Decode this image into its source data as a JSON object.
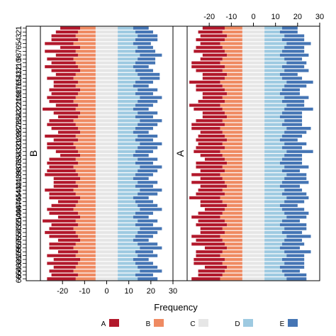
{
  "colors": {
    "A": "#b2182b",
    "B": "#ef8a62",
    "C": "#e6e6e6",
    "D": "#9ecae1",
    "E": "#4575b4",
    "frame": "#000000",
    "strip": "#ffffff"
  },
  "chart_data": {
    "type": "bar",
    "subtype": "diverging-stacked-horizontal",
    "xlabel": "Frequency",
    "xlim": [
      -30,
      30
    ],
    "xticks_bottom_panel": "left",
    "xticks_top_panel": "right",
    "xticks": [
      -20,
      -10,
      0,
      10,
      20,
      30
    ],
    "categories": [
      "1",
      "2",
      "3",
      "4",
      "5",
      "6",
      "7",
      "8",
      "9",
      "10",
      "11",
      "12",
      "13",
      "14",
      "15",
      "16",
      "17",
      "18",
      "19",
      "20",
      "21",
      "22",
      "23",
      "24",
      "25",
      "26",
      "27",
      "28",
      "29",
      "30",
      "31",
      "32",
      "33",
      "34",
      "35",
      "36",
      "37",
      "38",
      "39",
      "40",
      "41",
      "42",
      "43",
      "44",
      "45",
      "46",
      "47",
      "48",
      "49",
      "50",
      "51",
      "52",
      "53",
      "54",
      "55",
      "56",
      "57",
      "58",
      "59",
      "60",
      "61",
      "62",
      "63",
      "64",
      "65",
      "66"
    ],
    "legend": {
      "position": "bottom",
      "items": [
        "A",
        "B",
        "C",
        "D",
        "E"
      ]
    },
    "panels": [
      {
        "strip_label": "B",
        "series": {
          "A": [
            9,
            10,
            11,
            12,
            13,
            9,
            14,
            10,
            12,
            11,
            15,
            13,
            9,
            12,
            11,
            10,
            14,
            12,
            13,
            11,
            10,
            15,
            12,
            9,
            11,
            13,
            12,
            10,
            14,
            11,
            12,
            13,
            10,
            9,
            12,
            14,
            11,
            13,
            15,
            12,
            10,
            11,
            13,
            12,
            14,
            9,
            11,
            12,
            13,
            10,
            15,
            12,
            11,
            14,
            13,
            10,
            12,
            11,
            9,
            13,
            12,
            14,
            10,
            11,
            12,
            13
          ],
          "B": [
            7,
            8,
            9,
            8,
            10,
            7,
            9,
            8,
            10,
            9,
            8,
            7,
            9,
            10,
            8,
            9,
            7,
            8,
            9,
            10,
            8,
            9,
            7,
            8,
            10,
            9,
            8,
            7,
            9,
            8,
            10,
            9,
            8,
            7,
            9,
            8,
            10,
            9,
            8,
            7,
            9,
            8,
            10,
            9,
            7,
            8,
            9,
            10,
            8,
            7,
            9,
            8,
            10,
            9,
            8,
            7,
            9,
            10,
            8,
            9,
            7,
            8,
            9,
            10,
            8,
            9
          ],
          "C": [
            10,
            10,
            10,
            10,
            10,
            10,
            10,
            10,
            10,
            10,
            10,
            10,
            10,
            10,
            10,
            10,
            10,
            10,
            10,
            10,
            10,
            10,
            10,
            10,
            10,
            10,
            10,
            10,
            10,
            10,
            10,
            10,
            10,
            10,
            10,
            10,
            10,
            10,
            10,
            10,
            10,
            10,
            10,
            10,
            10,
            10,
            10,
            10,
            10,
            10,
            10,
            10,
            10,
            10,
            10,
            10,
            10,
            10,
            10,
            10,
            10,
            10,
            10,
            10,
            10,
            10
          ],
          "D": [
            7,
            8,
            9,
            8,
            7,
            9,
            8,
            10,
            9,
            8,
            7,
            8,
            9,
            10,
            8,
            7,
            9,
            8,
            10,
            9,
            8,
            7,
            9,
            8,
            10,
            9,
            8,
            7,
            9,
            8,
            10,
            9,
            8,
            7,
            9,
            8,
            10,
            9,
            8,
            7,
            9,
            8,
            10,
            9,
            7,
            8,
            9,
            10,
            8,
            7,
            9,
            8,
            10,
            9,
            8,
            7,
            9,
            10,
            8,
            9,
            7,
            8,
            9,
            10,
            8,
            9
          ],
          "E": [
            7,
            8,
            9,
            10,
            8,
            7,
            9,
            10,
            8,
            9,
            7,
            8,
            10,
            9,
            8,
            7,
            9,
            8,
            10,
            9,
            8,
            7,
            9,
            8,
            10,
            9,
            8,
            7,
            9,
            8,
            10,
            9,
            8,
            7,
            9,
            8,
            10,
            9,
            8,
            7,
            9,
            8,
            10,
            9,
            7,
            8,
            9,
            10,
            8,
            7,
            9,
            8,
            10,
            9,
            8,
            7,
            9,
            10,
            8,
            9,
            7,
            8,
            9,
            10,
            8,
            9
          ]
        }
      },
      {
        "strip_label": "A",
        "series": {
          "A": [
            10,
            11,
            12,
            13,
            9,
            12,
            14,
            11,
            10,
            13,
            15,
            12,
            11,
            10,
            14,
            12,
            13,
            11,
            9,
            12,
            14,
            13,
            10,
            11,
            12,
            15,
            13,
            10,
            12,
            14,
            11,
            13,
            12,
            10,
            9,
            14,
            12,
            11,
            13,
            10,
            15,
            12,
            11,
            13,
            14,
            10,
            12,
            9,
            11,
            13,
            12,
            14,
            10,
            11,
            13,
            12,
            15,
            10,
            12,
            11,
            14,
            13,
            10,
            12,
            11,
            13
          ],
          "B": [
            8,
            9,
            7,
            8,
            10,
            9,
            8,
            7,
            9,
            10,
            8,
            9,
            7,
            8,
            10,
            9,
            8,
            7,
            9,
            8,
            10,
            9,
            8,
            7,
            9,
            8,
            10,
            9,
            8,
            7,
            9,
            8,
            10,
            9,
            8,
            7,
            9,
            8,
            10,
            9,
            8,
            7,
            9,
            8,
            10,
            9,
            7,
            8,
            9,
            10,
            8,
            7,
            9,
            8,
            10,
            9,
            8,
            7,
            9,
            10,
            8,
            9,
            7,
            8,
            9,
            10
          ],
          "C": [
            10,
            10,
            10,
            10,
            10,
            10,
            10,
            10,
            10,
            10,
            10,
            10,
            10,
            10,
            10,
            10,
            10,
            10,
            10,
            10,
            10,
            10,
            10,
            10,
            10,
            10,
            10,
            10,
            10,
            10,
            10,
            10,
            10,
            10,
            10,
            10,
            10,
            10,
            10,
            10,
            10,
            10,
            10,
            10,
            10,
            10,
            10,
            10,
            10,
            10,
            10,
            10,
            10,
            10,
            10,
            10,
            10,
            10,
            10,
            10,
            10,
            10,
            10,
            10,
            10,
            10
          ],
          "D": [
            8,
            7,
            9,
            8,
            10,
            9,
            8,
            7,
            9,
            10,
            8,
            9,
            7,
            8,
            10,
            9,
            8,
            7,
            9,
            8,
            10,
            9,
            8,
            7,
            9,
            8,
            10,
            9,
            8,
            7,
            9,
            8,
            10,
            9,
            8,
            7,
            9,
            8,
            10,
            9,
            8,
            7,
            9,
            8,
            10,
            9,
            7,
            8,
            9,
            10,
            8,
            7,
            9,
            8,
            10,
            9,
            8,
            7,
            9,
            10,
            8,
            9,
            7,
            8,
            9,
            10
          ],
          "E": [
            7,
            8,
            9,
            10,
            11,
            9,
            10,
            13,
            8,
            9,
            10,
            11,
            8,
            9,
            12,
            10,
            8,
            9,
            11,
            10,
            8,
            13,
            9,
            10,
            8,
            9,
            11,
            10,
            9,
            8,
            10,
            9,
            12,
            8,
            9,
            10,
            11,
            8,
            9,
            10,
            12,
            9,
            8,
            11,
            10,
            9,
            8,
            10,
            11,
            9,
            8,
            12,
            10,
            9,
            11,
            8,
            10,
            9,
            12,
            8,
            10,
            9,
            11,
            8,
            10,
            9
          ]
        }
      }
    ]
  }
}
